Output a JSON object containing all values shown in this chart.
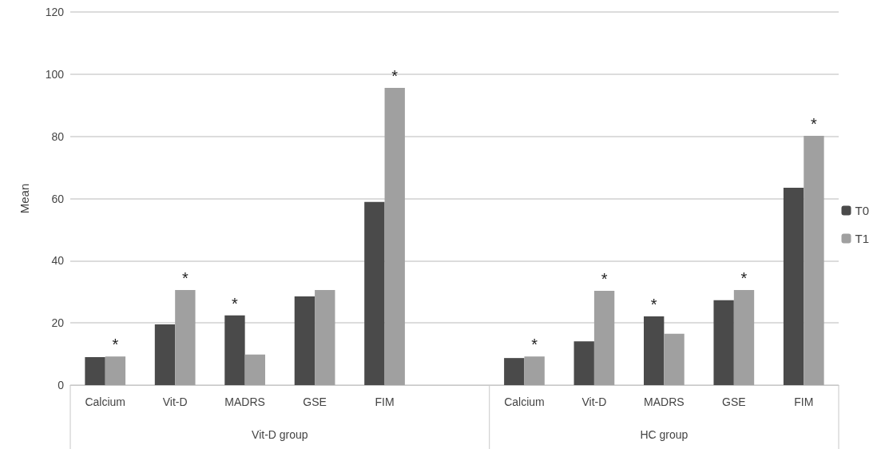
{
  "chart_data": {
    "type": "bar",
    "ylabel": "Mean",
    "categories": [
      "Calcium",
      "Vit-D",
      "MADRS",
      "GSE",
      "FIM",
      null,
      "Calcium",
      "Vit-D",
      "MADRS",
      "GSE",
      "FIM"
    ],
    "series": [
      {
        "name": "T0",
        "color": "#4a4a4a",
        "values": [
          9.0,
          19.5,
          22.4,
          28.5,
          58.9,
          null,
          8.7,
          14.1,
          22.1,
          27.3,
          63.5
        ],
        "value_labels": [
          null,
          null,
          "*",
          null,
          null,
          null,
          null,
          null,
          "*",
          null,
          null
        ]
      },
      {
        "name": "T1",
        "color": "#a0a0a0",
        "values": [
          9.2,
          30.6,
          9.8,
          30.6,
          95.6,
          null,
          9.2,
          30.3,
          16.5,
          30.6,
          80.2
        ],
        "value_labels": [
          "*",
          "*",
          null,
          null,
          "*",
          null,
          "*",
          "*",
          null,
          "*",
          "*"
        ]
      }
    ],
    "annotations": [
      "Vit-D group",
      "HC group"
    ],
    "ylim": [
      0,
      120
    ],
    "yticks": [
      0,
      20,
      40,
      60,
      80,
      100,
      120
    ],
    "grid": "y",
    "legend": "right"
  }
}
